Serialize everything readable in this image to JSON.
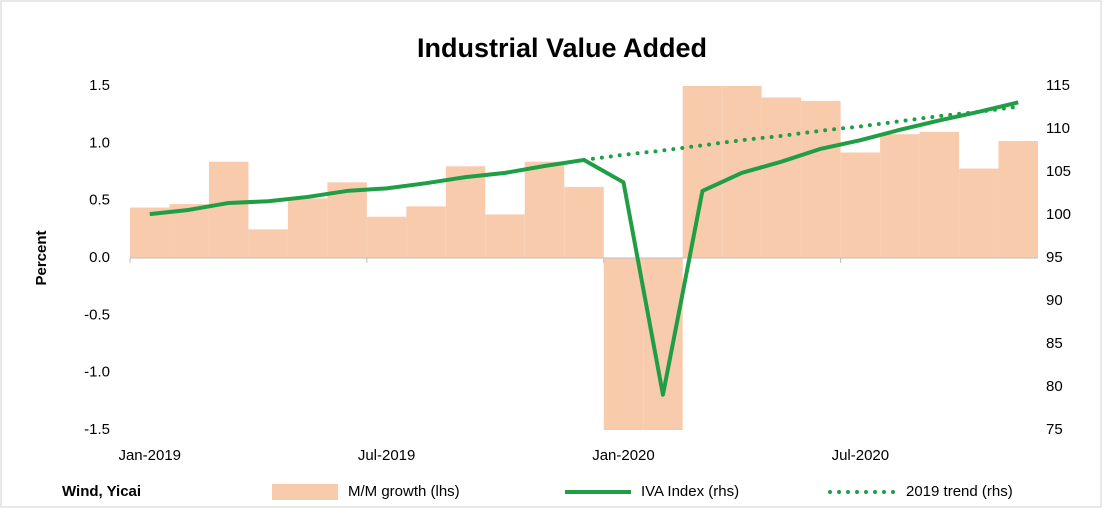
{
  "chart_data": {
    "type": "combo",
    "title": "Industrial Value Added",
    "y_label": "Percent",
    "source": "Wind, Yicai",
    "categories": [
      "Jan-2019",
      null,
      null,
      null,
      null,
      null,
      "Jul-2019",
      null,
      null,
      null,
      null,
      null,
      "Jan-2020",
      null,
      null,
      null,
      null,
      null,
      "Jul-2020",
      null,
      null,
      null,
      null
    ],
    "series": [
      {
        "name": "M/M growth (lhs)",
        "type": "bar",
        "color": "#f8cbad",
        "axis": "y",
        "values": [
          0.44,
          0.47,
          0.84,
          0.25,
          0.52,
          0.66,
          0.36,
          0.45,
          0.8,
          0.38,
          0.84,
          0.62,
          -1.5,
          -1.5,
          1.5,
          1.5,
          1.4,
          1.37,
          0.92,
          1.08,
          1.1,
          0.78,
          1.02
        ]
      },
      {
        "name": "IVA Index (rhs)",
        "type": "line",
        "color": "#1f9e45",
        "axis": "y2",
        "style": "solid",
        "values": [
          100.1,
          100.6,
          101.4,
          101.6,
          102.1,
          102.8,
          103.1,
          103.7,
          104.4,
          104.9,
          105.7,
          106.4,
          103.8,
          79.1,
          102.8,
          104.9,
          106.2,
          107.7,
          108.7,
          109.9,
          111.0,
          112.0,
          113.1
        ]
      },
      {
        "name": "2019 trend (rhs)",
        "type": "line",
        "color": "#1f9e45",
        "axis": "y2",
        "style": "dotted",
        "values": [
          null,
          null,
          null,
          null,
          null,
          null,
          null,
          null,
          null,
          null,
          null,
          106.4,
          107.0,
          107.5,
          108.1,
          108.7,
          109.2,
          109.8,
          110.3,
          110.9,
          111.5,
          112.0,
          112.6
        ]
      }
    ],
    "ylim": [
      -1.5,
      1.5
    ],
    "yticks": [
      1.5,
      {
        "value": 1.0,
        "label": "1.0"
      },
      0.5,
      {
        "value": 0.0,
        "label": "0.0"
      },
      -0.5,
      {
        "value": -1.0,
        "label": "-1.0"
      },
      -1.5
    ],
    "y2lim": [
      75,
      115
    ],
    "y2ticks": [
      75,
      80,
      85,
      90,
      95,
      100,
      105,
      110,
      115
    ],
    "grid": false
  }
}
